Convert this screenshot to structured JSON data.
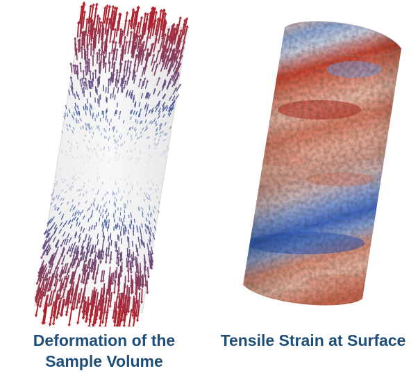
{
  "left_panel": {
    "caption_line1": "Deformation of the",
    "caption_line2": "Sample Volume",
    "image_icon": "deformation-vector-field-cylinder"
  },
  "right_panel": {
    "caption": "Tensile Strain at Surface",
    "image_icon": "strain-surface-cylinder"
  },
  "colors": {
    "caption_text": "#1f4e79",
    "high_red": "#b2182b",
    "mid_white": "#f2f2f2",
    "low_blue": "#2f5fb3"
  }
}
